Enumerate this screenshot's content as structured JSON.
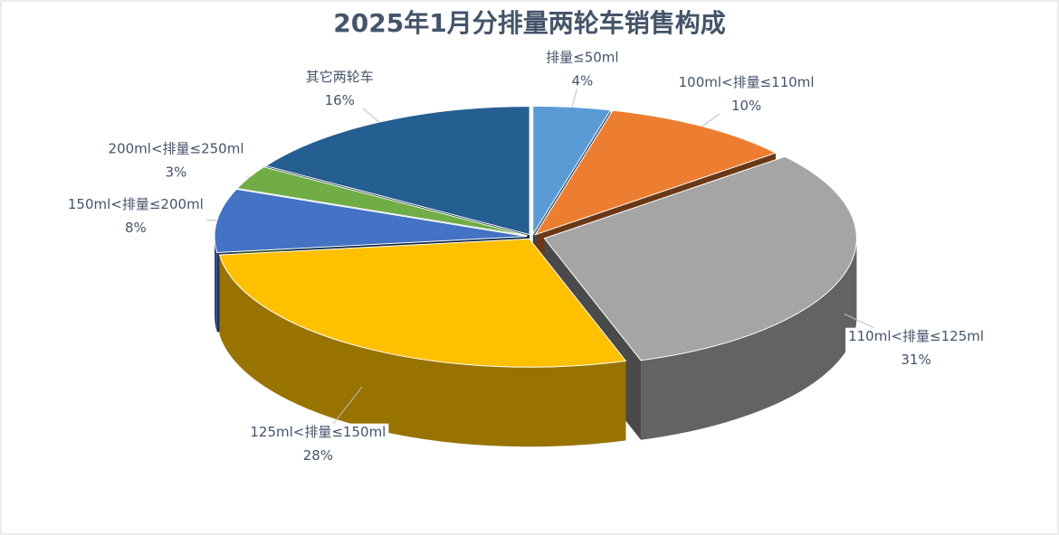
{
  "chart_data": {
    "type": "pie3d",
    "title": "2025年1月分排量两轮车销售构成",
    "categories": [
      "排量≤50ml",
      "100ml<排量≤110ml",
      "110ml<排量≤125ml",
      "125ml<排量≤150ml",
      "150ml<排量≤200ml",
      "200ml<排量≤250ml",
      "其它两轮车"
    ],
    "values": [
      4,
      10,
      31,
      28,
      8,
      3,
      16
    ],
    "value_labels": [
      "4%",
      "10%",
      "31%",
      "28%",
      "8%",
      "3%",
      "16%"
    ],
    "colors": [
      "#5b9bd5",
      "#ed7d31",
      "#a5a5a5",
      "#ffc000",
      "#4472c4",
      "#70ad47",
      "#255e91"
    ]
  }
}
